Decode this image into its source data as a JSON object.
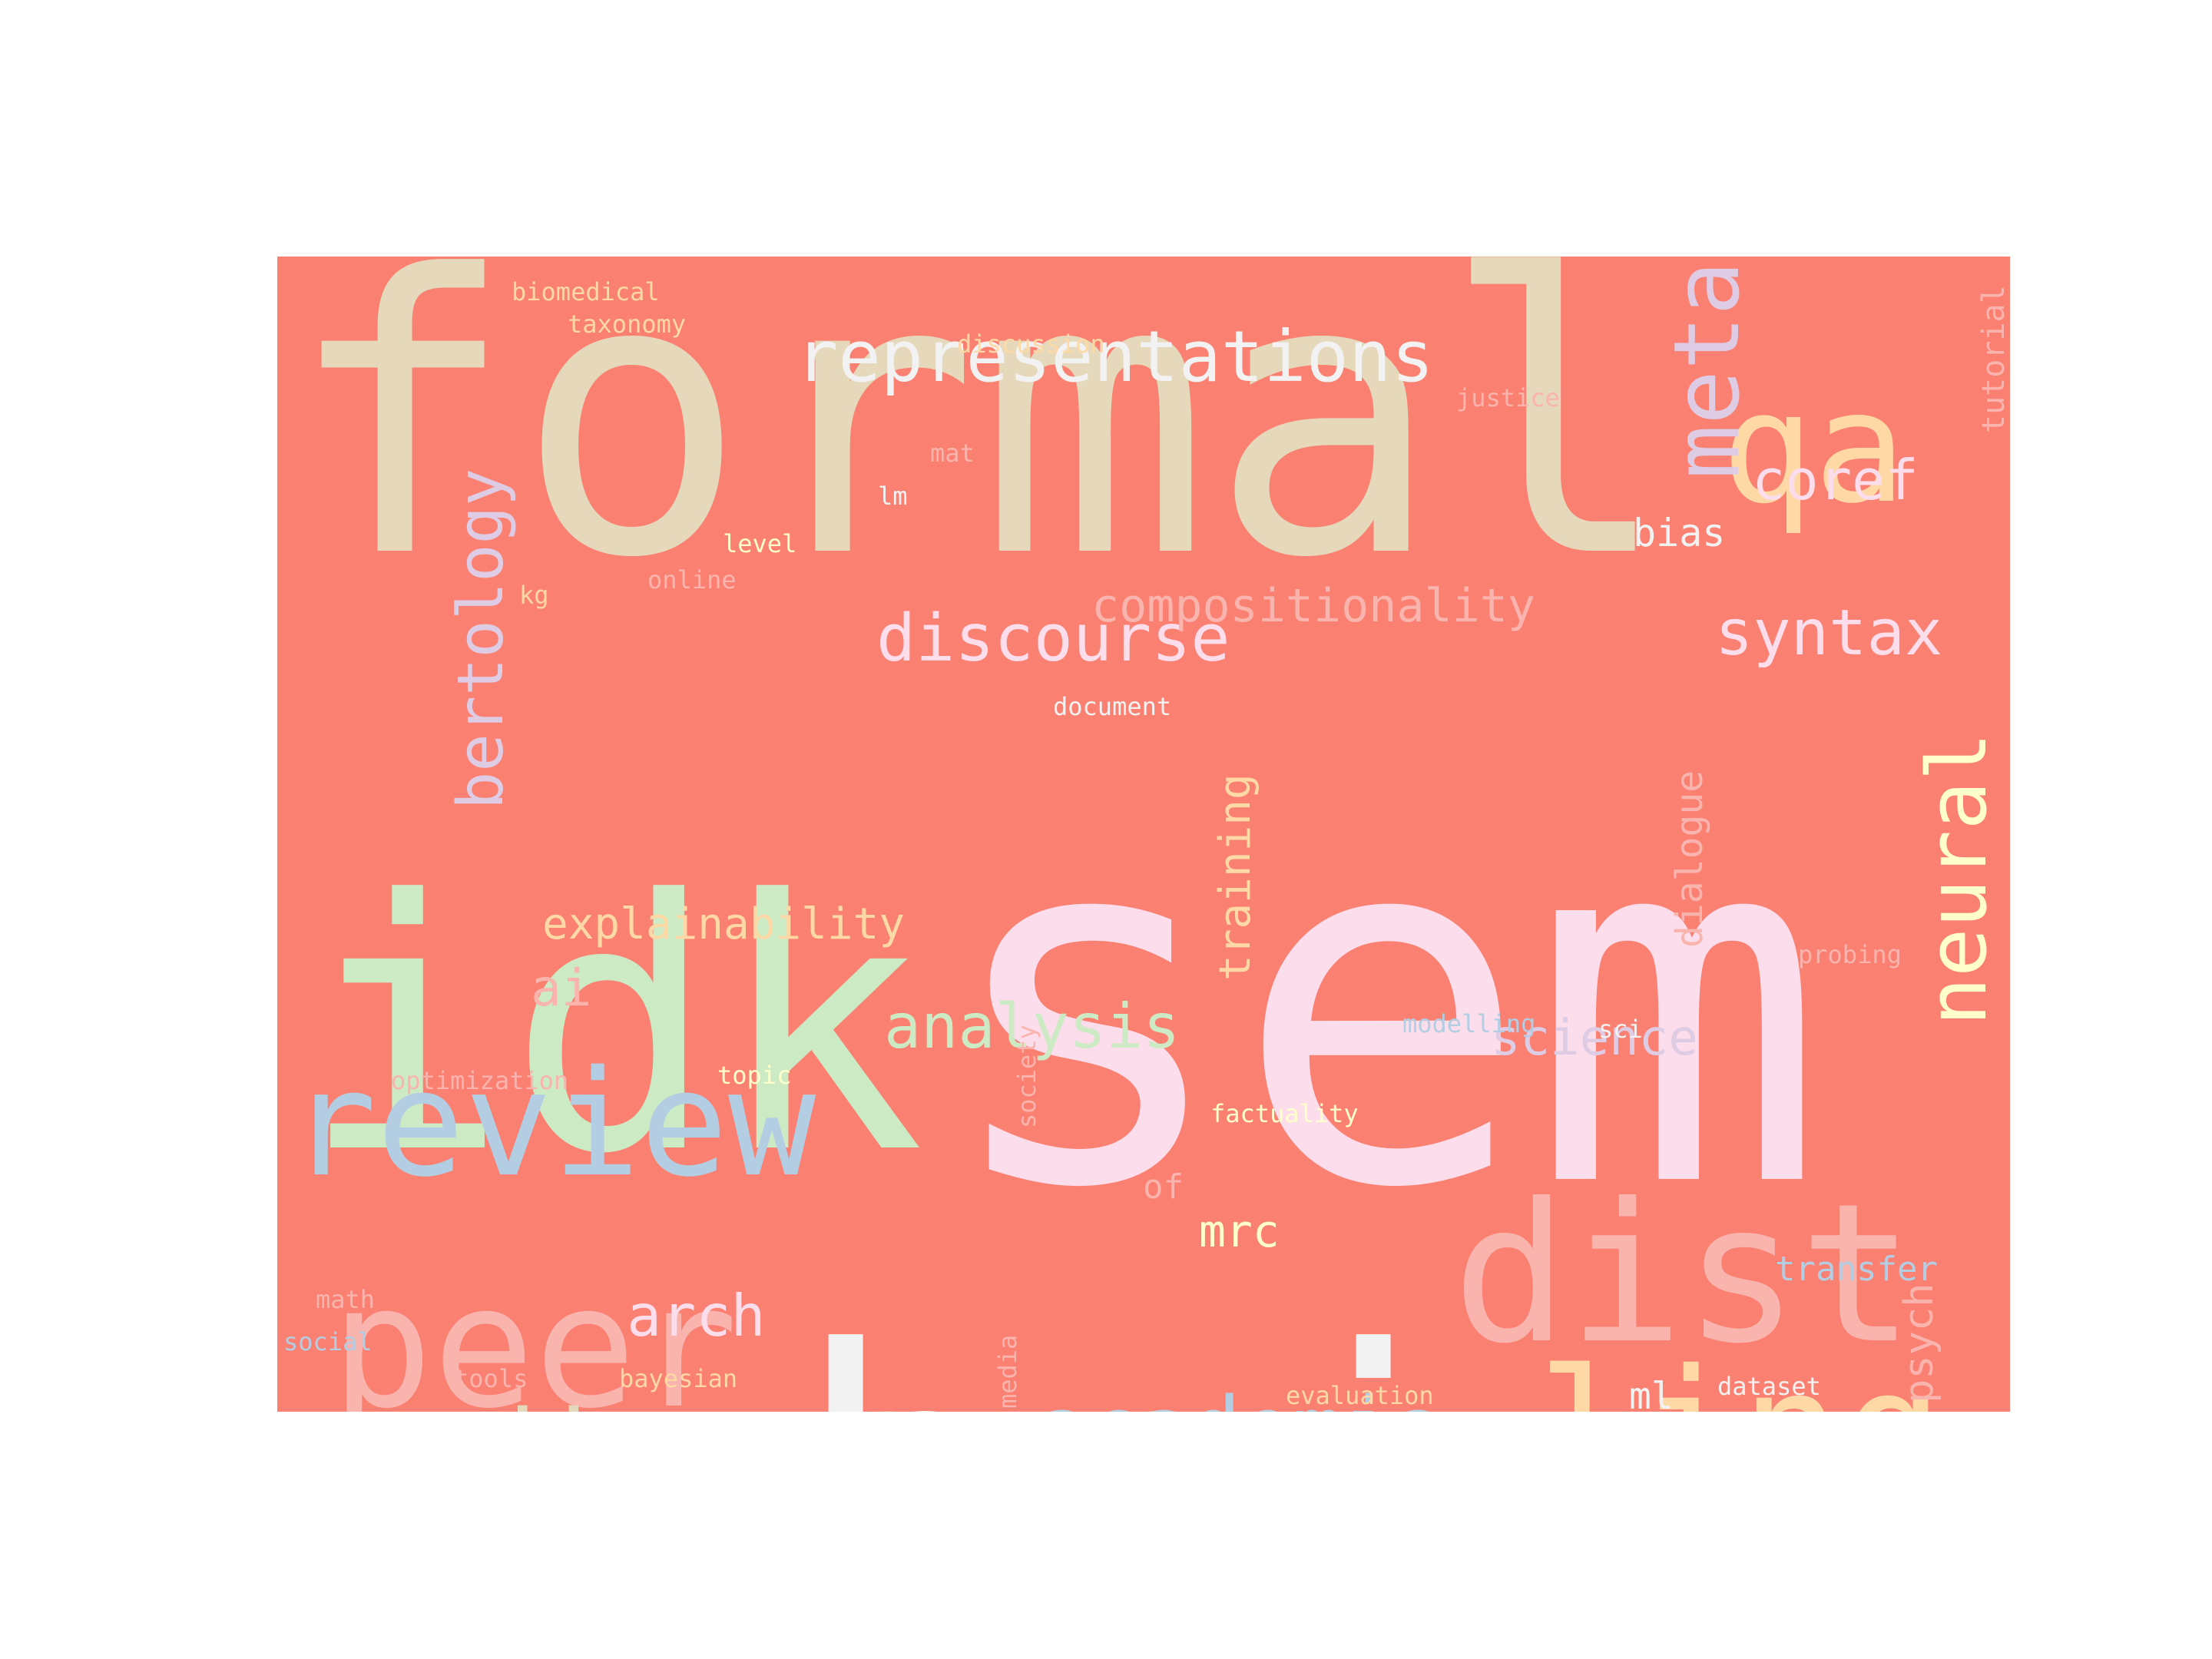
{
  "background_color": "#FA8072",
  "words": [
    {
      "id": "formal",
      "text": "formal",
      "color": "#E6D8BB"
    },
    {
      "id": "sem",
      "text": "sem",
      "color": "#FCDDEB"
    },
    {
      "id": "hci",
      "text": "hci",
      "color": "#F2F2F2"
    },
    {
      "id": "idk",
      "text": "idk",
      "color": "#CCEBC5"
    },
    {
      "id": "dist",
      "text": "dist",
      "color": "#F9B4AE"
    },
    {
      "id": "review",
      "text": "review",
      "color": "#B3CDE3"
    },
    {
      "id": "peer",
      "text": "peer",
      "color": "#F9B4AE"
    },
    {
      "id": "ling",
      "text": "ling",
      "color": "#FED9A6"
    },
    {
      "id": "qa",
      "text": "qa",
      "color": "#FED9A6"
    },
    {
      "id": "adjacent",
      "text": "adjacent",
      "color": "#E6D8BB"
    },
    {
      "id": "academia",
      "text": "academia",
      "color": "#B3CDE3"
    },
    {
      "id": "meta",
      "text": "meta",
      "color": "#DECBE4"
    },
    {
      "id": "neural",
      "text": "neural",
      "color": "#FFFFCC"
    },
    {
      "id": "representations",
      "text": "representations",
      "color": "#F2F2F2"
    },
    {
      "id": "discourse",
      "text": "discourse",
      "color": "#FCDDEB"
    },
    {
      "id": "syntax",
      "text": "syntax",
      "color": "#FCDDEB"
    },
    {
      "id": "bertology",
      "text": "bertology",
      "color": "#DECBE4"
    },
    {
      "id": "analysis",
      "text": "analysis",
      "color": "#CCEBC5"
    },
    {
      "id": "coref",
      "text": "coref",
      "color": "#FCDDEB"
    },
    {
      "id": "compositionality",
      "text": "compositionality",
      "color": "#F9B4AE"
    },
    {
      "id": "arch",
      "text": "arch",
      "color": "#FCDDEB"
    },
    {
      "id": "science",
      "text": "science",
      "color": "#DECBE4"
    },
    {
      "id": "explainability",
      "text": "explainability",
      "color": "#FED9A6"
    },
    {
      "id": "training",
      "text": "training",
      "color": "#FED9A6"
    },
    {
      "id": "ai",
      "text": "ai",
      "color": "#F9B4AE"
    },
    {
      "id": "mrc",
      "text": "mrc",
      "color": "#FFFFCC"
    },
    {
      "id": "dialogue",
      "text": "dialogue",
      "color": "#F9B4AE"
    },
    {
      "id": "psych",
      "text": "psych",
      "color": "#F9B4AE"
    },
    {
      "id": "bias",
      "text": "bias",
      "color": "#F2F2F2"
    },
    {
      "id": "transfer",
      "text": "transfer",
      "color": "#B3CDE3"
    },
    {
      "id": "ml",
      "text": "ml",
      "color": "#F2F2F2"
    },
    {
      "id": "tutorial",
      "text": "tutorial",
      "color": "#F9B4AE"
    },
    {
      "id": "of",
      "text": "of",
      "color": "#F9B4AE"
    },
    {
      "id": "biomedical",
      "text": "biomedical",
      "color": "#FED9A6"
    },
    {
      "id": "taxonomy",
      "text": "taxonomy",
      "color": "#FED9A6"
    },
    {
      "id": "discussion",
      "text": "discussion",
      "color": "#FED9A6"
    },
    {
      "id": "justice",
      "text": "justice",
      "color": "#F9B4AE"
    },
    {
      "id": "mat",
      "text": "mat",
      "color": "#F9B4AE"
    },
    {
      "id": "lm",
      "text": "lm",
      "color": "#F2F2F2"
    },
    {
      "id": "level",
      "text": "level",
      "color": "#FFFFCC"
    },
    {
      "id": "online",
      "text": "online",
      "color": "#F9B4AE"
    },
    {
      "id": "kg",
      "text": "kg",
      "color": "#FED9A6"
    },
    {
      "id": "document",
      "text": "document",
      "color": "#F2F2F2"
    },
    {
      "id": "probing",
      "text": "probing",
      "color": "#F9B4AE"
    },
    {
      "id": "modelling",
      "text": "modelling",
      "color": "#B3CDE3"
    },
    {
      "id": "sci",
      "text": "sci",
      "color": "#F2F2F2"
    },
    {
      "id": "optimization",
      "text": "optimization",
      "color": "#F9B4AE"
    },
    {
      "id": "topic",
      "text": "topic",
      "color": "#FFFFCC"
    },
    {
      "id": "society",
      "text": "society",
      "color": "#F9B4AE"
    },
    {
      "id": "factuality",
      "text": "factuality",
      "color": "#FFFFCC"
    },
    {
      "id": "math",
      "text": "math",
      "color": "#F9B4AE"
    },
    {
      "id": "social",
      "text": "social",
      "color": "#B3CDE3"
    },
    {
      "id": "tools",
      "text": "tools",
      "color": "#F9B4AE"
    },
    {
      "id": "bayesian",
      "text": "bayesian",
      "color": "#FED9A6"
    },
    {
      "id": "media",
      "text": "media",
      "color": "#F9B4AE"
    },
    {
      "id": "evaluation",
      "text": "evaluation",
      "color": "#FED9A6"
    },
    {
      "id": "dataset",
      "text": "dataset",
      "color": "#F2F2F2"
    }
  ]
}
